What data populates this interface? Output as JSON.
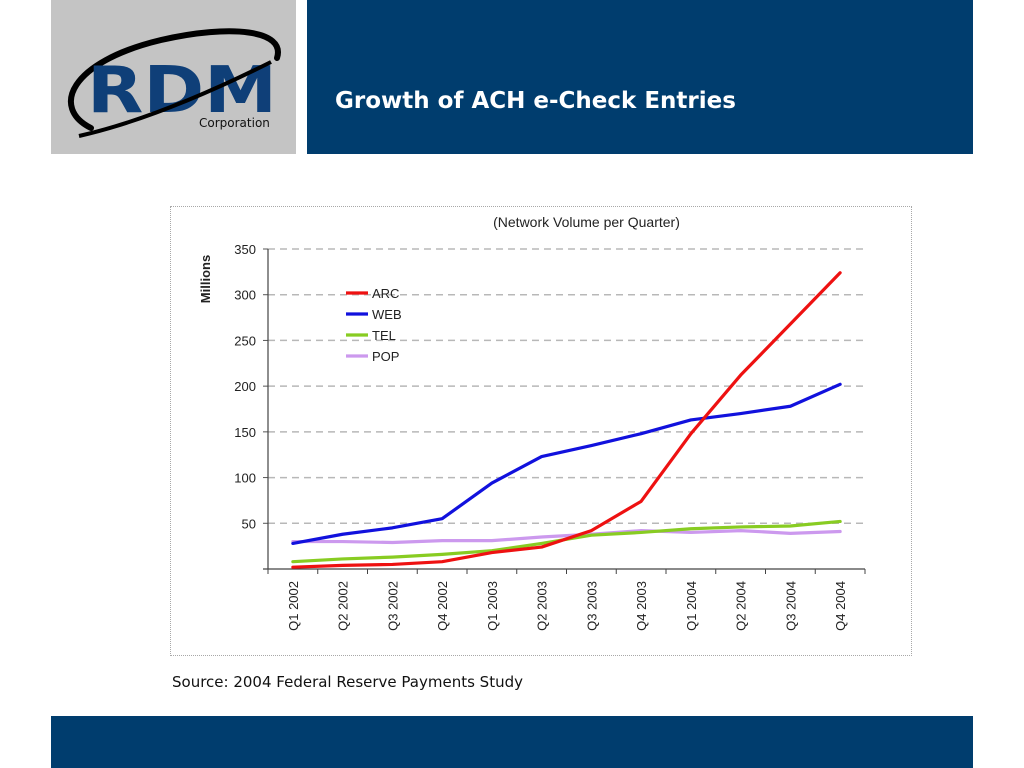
{
  "slide": {
    "title": "Growth of ACH e-Check Entries",
    "source": "Source: 2004 Federal Reserve Payments Study",
    "logo_text": "RDM",
    "logo_subtext": "Corporation",
    "colors": {
      "bar": "#003d6e",
      "logo_bg": "#c4c4c4",
      "logo_ink": "#0f3f78"
    }
  },
  "chart_data": {
    "type": "line",
    "title": "(Network Volume per Quarter)",
    "ylabel": "Millions",
    "xlabel": "",
    "ylim": [
      0,
      350
    ],
    "yticks": [
      50,
      100,
      150,
      200,
      250,
      300,
      350
    ],
    "grid": true,
    "legend": "top-left",
    "categories": [
      "Q1 2002",
      "Q2 2002",
      "Q3 2002",
      "Q4 2002",
      "Q1 2003",
      "Q2 2003",
      "Q3 2003",
      "Q4 2003",
      "Q1 2004",
      "Q2 2004",
      "Q3 2004",
      "Q4 2004"
    ],
    "series": [
      {
        "name": "ARC",
        "color": "#ee1111",
        "values": [
          2,
          4,
          5,
          8,
          18,
          24,
          42,
          74,
          148,
          212,
          268,
          324
        ]
      },
      {
        "name": "WEB",
        "color": "#1111dd",
        "values": [
          28,
          38,
          45,
          55,
          94,
          123,
          135,
          148,
          163,
          170,
          178,
          202
        ]
      },
      {
        "name": "TEL",
        "color": "#88cc22",
        "values": [
          8,
          11,
          13,
          16,
          20,
          28,
          37,
          40,
          44,
          46,
          47,
          52
        ]
      },
      {
        "name": "POP",
        "color": "#cc99ee",
        "values": [
          30,
          30,
          29,
          31,
          31,
          35,
          38,
          42,
          40,
          42,
          39,
          41
        ]
      }
    ]
  }
}
